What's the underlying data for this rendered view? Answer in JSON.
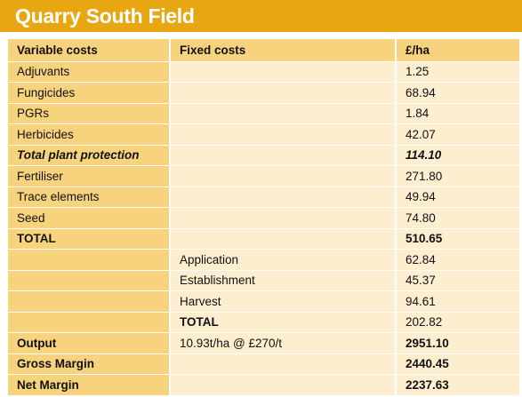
{
  "title": "Quarry South Field",
  "headers": {
    "variable": "Variable costs",
    "fixed": "Fixed costs",
    "value": "£/ha"
  },
  "rows": [
    {
      "c1": "Adjuvants",
      "c2": "",
      "c3": "1.25"
    },
    {
      "c1": "Fungicides",
      "c2": "",
      "c3": "68.94"
    },
    {
      "c1": "PGRs",
      "c2": "",
      "c3": "1.84"
    },
    {
      "c1": "Herbicides",
      "c2": "",
      "c3": "42.07"
    },
    {
      "c1": "Total plant protection",
      "c2": "",
      "c3": "114.10"
    },
    {
      "c1": "Fertiliser",
      "c2": "",
      "c3": "271.80"
    },
    {
      "c1": "Trace elements",
      "c2": "",
      "c3": "49.94"
    },
    {
      "c1": "Seed",
      "c2": "",
      "c3": "74.80"
    },
    {
      "c1": "TOTAL",
      "c2": "",
      "c3": "510.65"
    },
    {
      "c1": "",
      "c2": "Application",
      "c3": "62.84"
    },
    {
      "c1": "",
      "c2": "Establishment",
      "c3": "45.37"
    },
    {
      "c1": "",
      "c2": "Harvest",
      "c3": "94.61"
    },
    {
      "c1": "",
      "c2": "TOTAL",
      "c3": "202.82"
    },
    {
      "c1": "Output",
      "c2": "10.93t/ha @ £270/t",
      "c3": "2951.10"
    },
    {
      "c1": "Gross Margin",
      "c2": "",
      "c3": "2440.45"
    },
    {
      "c1": "Net Margin",
      "c2": "",
      "c3": "2237.63"
    }
  ]
}
